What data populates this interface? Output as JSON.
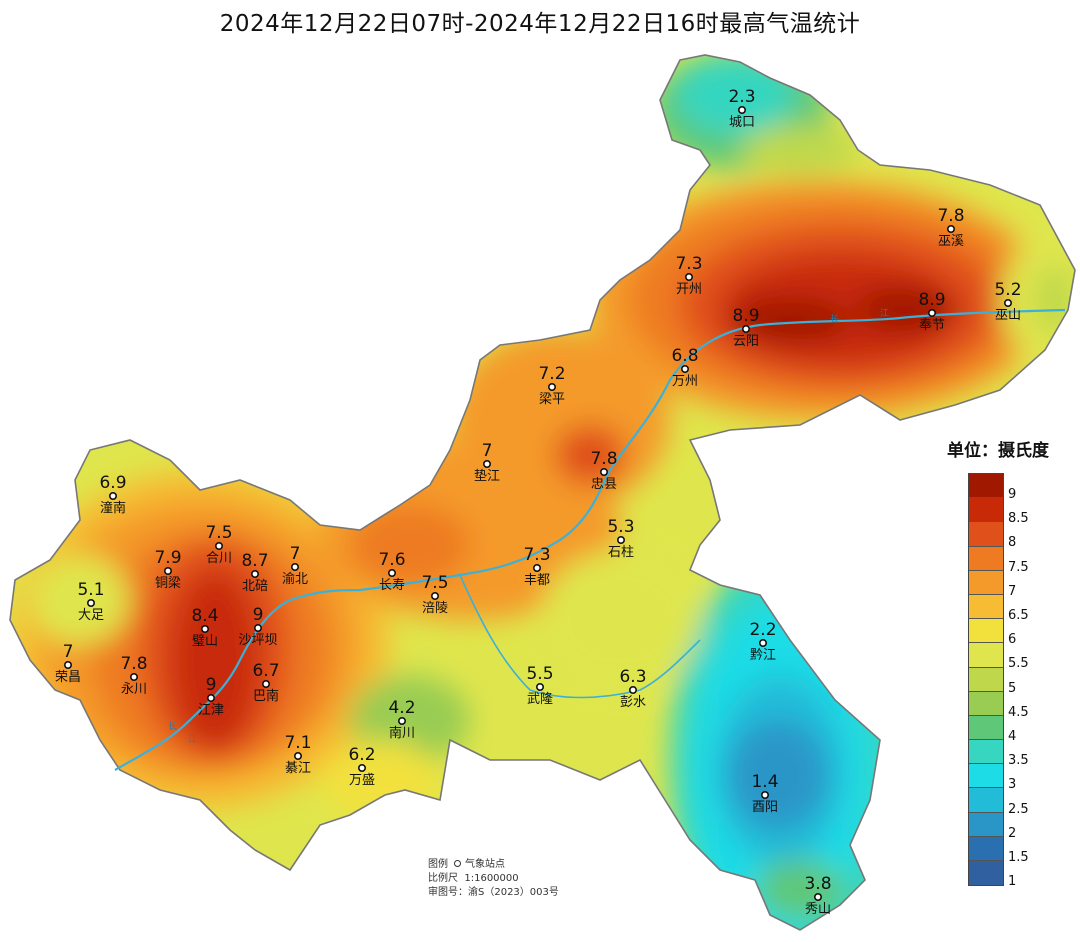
{
  "title": "2024年12月22日07时-2024年12月22日16时最高气温统计",
  "unit_label": "单位：摄氏度",
  "legend": {
    "labels": [
      "9",
      "8.5",
      "8",
      "7.5",
      "7",
      "6.5",
      "6",
      "5.5",
      "5",
      "4.5",
      "4",
      "3.5",
      "3",
      "2.5",
      "2",
      "1.5",
      "1"
    ],
    "colors": [
      "#a01800",
      "#c82a08",
      "#e0501a",
      "#ee7a22",
      "#f49a2a",
      "#f6bc33",
      "#f2e13d",
      "#dfe64d",
      "#bfd84b",
      "#98cc52",
      "#5ec878",
      "#36d6c0",
      "#1edce6",
      "#22bcd8",
      "#2a96c8",
      "#2a70b0",
      "#3060a0"
    ]
  },
  "notes": {
    "legend_label": "图例",
    "legend_item": "气象站点",
    "scale_label": "比例尺",
    "scale_value": "1:1600000",
    "approval": "审图号：渝S（2023）003号"
  },
  "river_labels": [
    "长",
    "江",
    "长",
    "江"
  ],
  "stations": [
    {
      "name": "城口",
      "value": "2.3"
    },
    {
      "name": "巫溪",
      "value": "7.8"
    },
    {
      "name": "开州",
      "value": "7.3"
    },
    {
      "name": "云阳",
      "value": "8.9"
    },
    {
      "name": "奉节",
      "value": "8.9"
    },
    {
      "name": "巫山",
      "value": "5.2"
    },
    {
      "name": "万州",
      "value": "6.8"
    },
    {
      "name": "梁平",
      "value": "7.2"
    },
    {
      "name": "垫江",
      "value": "7"
    },
    {
      "name": "忠县",
      "value": "7.8"
    },
    {
      "name": "石柱",
      "value": "5.3"
    },
    {
      "name": "潼南",
      "value": "6.9"
    },
    {
      "name": "合川",
      "value": "7.5"
    },
    {
      "name": "北碚",
      "value": "8.7"
    },
    {
      "name": "铜梁",
      "value": "7.9"
    },
    {
      "name": "渝北",
      "value": "7"
    },
    {
      "name": "长寿",
      "value": "7.6"
    },
    {
      "name": "涪陵",
      "value": "7.5"
    },
    {
      "name": "丰都",
      "value": "7.3"
    },
    {
      "name": "大足",
      "value": "5.1"
    },
    {
      "name": "璧山",
      "value": "8.4"
    },
    {
      "name": "沙坪坝",
      "value": "9"
    },
    {
      "name": "荣昌",
      "value": "7"
    },
    {
      "name": "永川",
      "value": "7.8"
    },
    {
      "name": "巴南",
      "value": "6.7"
    },
    {
      "name": "江津",
      "value": "9"
    },
    {
      "name": "黔江",
      "value": "2.2"
    },
    {
      "name": "武隆",
      "value": "5.5"
    },
    {
      "name": "彭水",
      "value": "6.3"
    },
    {
      "name": "南川",
      "value": "4.2"
    },
    {
      "name": "綦江",
      "value": "7.1"
    },
    {
      "name": "万盛",
      "value": "6.2"
    },
    {
      "name": "酉阳",
      "value": "1.4"
    },
    {
      "name": "秀山",
      "value": "3.8"
    }
  ]
}
